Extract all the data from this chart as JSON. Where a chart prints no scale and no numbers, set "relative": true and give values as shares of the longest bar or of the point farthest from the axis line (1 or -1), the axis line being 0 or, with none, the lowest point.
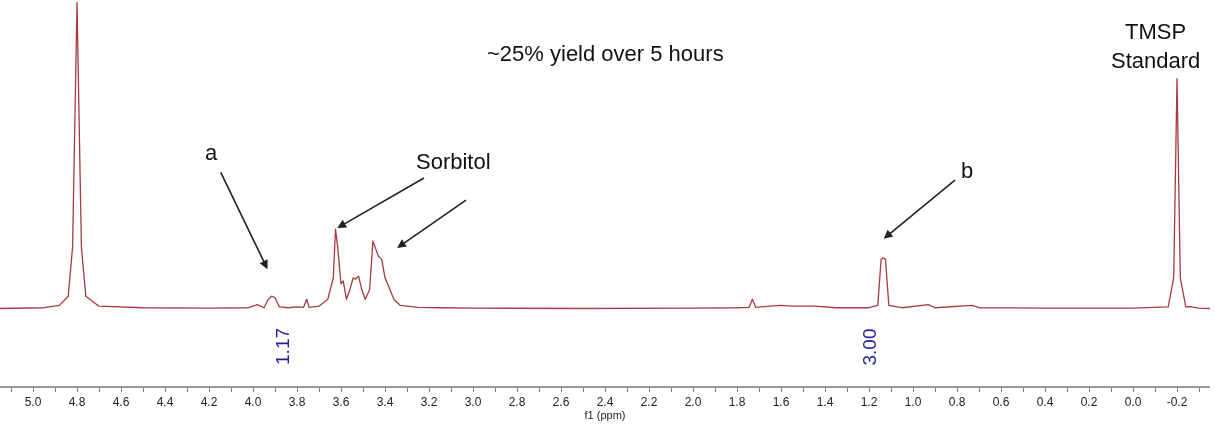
{
  "chart_data": {
    "type": "line",
    "relative": true,
    "tick_labels": "x",
    "xlabel": "f1 (ppm)",
    "xlim": [
      5.15,
      -0.35
    ],
    "xticks": [
      {
        "value": 5,
        "label": "5.0"
      },
      4.8,
      4.6,
      4.4,
      4.2,
      {
        "value": 4,
        "label": "4.0"
      },
      3.8,
      3.6,
      3.4,
      3.2,
      {
        "value": 3,
        "label": "3.0"
      },
      2.8,
      2.6,
      2.4,
      2.2,
      {
        "value": 2,
        "label": "2.0"
      },
      1.8,
      1.6,
      1.4,
      1.2,
      {
        "value": 1,
        "label": "1.0"
      },
      0.8,
      0.6,
      0.4,
      0.2,
      {
        "value": 0,
        "label": "0.0"
      },
      -0.2,
      {
        "value": 5.1,
        "label": null
      },
      {
        "value": 4.9,
        "label": null
      },
      {
        "value": 4.7,
        "label": null
      },
      {
        "value": 4.5,
        "label": null
      },
      {
        "value": 4.3,
        "label": null
      },
      {
        "value": 4.1,
        "label": null
      },
      {
        "value": 3.9,
        "label": null
      },
      {
        "value": 3.7,
        "label": null
      },
      {
        "value": 3.5,
        "label": null
      },
      {
        "value": 3.3,
        "label": null
      },
      {
        "value": 3.1,
        "label": null
      },
      {
        "value": 2.9,
        "label": null
      },
      {
        "value": 2.7,
        "label": null
      },
      {
        "value": 2.5,
        "label": null
      },
      {
        "value": 2.3,
        "label": null
      },
      {
        "value": 2.1,
        "label": null
      },
      {
        "value": 1.9,
        "label": null
      },
      {
        "value": 1.7,
        "label": null
      },
      {
        "value": 1.5,
        "label": null
      },
      {
        "value": 1.3,
        "label": null
      },
      {
        "value": 1.1,
        "label": null
      },
      {
        "value": 0.9,
        "label": null
      },
      {
        "value": 0.7,
        "label": null
      },
      {
        "value": 0.5,
        "label": null
      },
      {
        "value": 0.3,
        "label": null
      },
      {
        "value": 0.1,
        "label": null
      },
      {
        "value": -0.1,
        "label": null
      },
      {
        "value": -0.3,
        "label": null
      }
    ],
    "x": [
      5.15,
      4.95,
      4.88,
      4.84,
      4.82,
      4.81,
      4.8,
      4.79,
      4.78,
      4.76,
      4.7,
      4.5,
      4.2,
      4.02,
      3.98,
      3.95,
      3.93,
      3.915,
      3.9,
      3.88,
      3.84,
      3.8,
      3.77,
      3.756,
      3.745,
      3.7,
      3.66,
      3.635,
      3.625,
      3.615,
      3.6,
      3.59,
      3.575,
      3.56,
      3.545,
      3.535,
      3.52,
      3.505,
      3.49,
      3.47,
      3.455,
      3.445,
      3.43,
      3.415,
      3.4,
      3.385,
      3.36,
      3.33,
      3.25,
      3.15,
      3.0,
      2.5,
      2.0,
      1.8,
      1.745,
      1.73,
      1.715,
      1.65,
      1.6,
      1.55,
      1.45,
      1.35,
      1.2,
      1.16,
      1.145,
      1.135,
      1.125,
      1.11,
      1.05,
      0.93,
      0.9,
      0.73,
      0.7,
      0.4,
      0.0,
      -0.16,
      -0.185,
      -0.2,
      -0.215,
      -0.24,
      -0.26,
      -0.3,
      -0.35
    ],
    "series": [
      {
        "color": "#a83c3c",
        "values": [
          0.202,
          0.204,
          0.21,
          0.234,
          0.362,
          0.681,
          1,
          0.681,
          0.362,
          0.234,
          0.208,
          0.204,
          0.203,
          0.204,
          0.212,
          0.204,
          0.226,
          0.234,
          0.23,
          0.206,
          0.204,
          0.206,
          0.205,
          0.226,
          0.205,
          0.208,
          0.226,
          0.282,
          0.409,
          0.362,
          0.266,
          0.274,
          0.226,
          0.25,
          0.282,
          0.278,
          0.286,
          0.25,
          0.226,
          0.25,
          0.378,
          0.362,
          0.338,
          0.33,
          0.282,
          0.262,
          0.226,
          0.21,
          0.205,
          0.204,
          0.203,
          0.202,
          0.203,
          0.204,
          0.205,
          0.226,
          0.205,
          0.208,
          0.21,
          0.208,
          0.208,
          0.204,
          0.204,
          0.21,
          0.33,
          0.334,
          0.33,
          0.21,
          0.204,
          0.212,
          0.204,
          0.21,
          0.204,
          0.203,
          0.203,
          0.206,
          0.282,
          0.801,
          0.282,
          0.206,
          0.207,
          0.203,
          0.202
        ]
      }
    ],
    "annotations": [
      "~25% yield over 5 hours",
      "a",
      {
        "text": "Sorbitol",
        "x": 3.625,
        "y": 0.409
      },
      "b",
      {
        "text": "TMSP Standard",
        "x": -0.2,
        "y": 0.801
      },
      "1.17",
      "3.00"
    ]
  }
}
